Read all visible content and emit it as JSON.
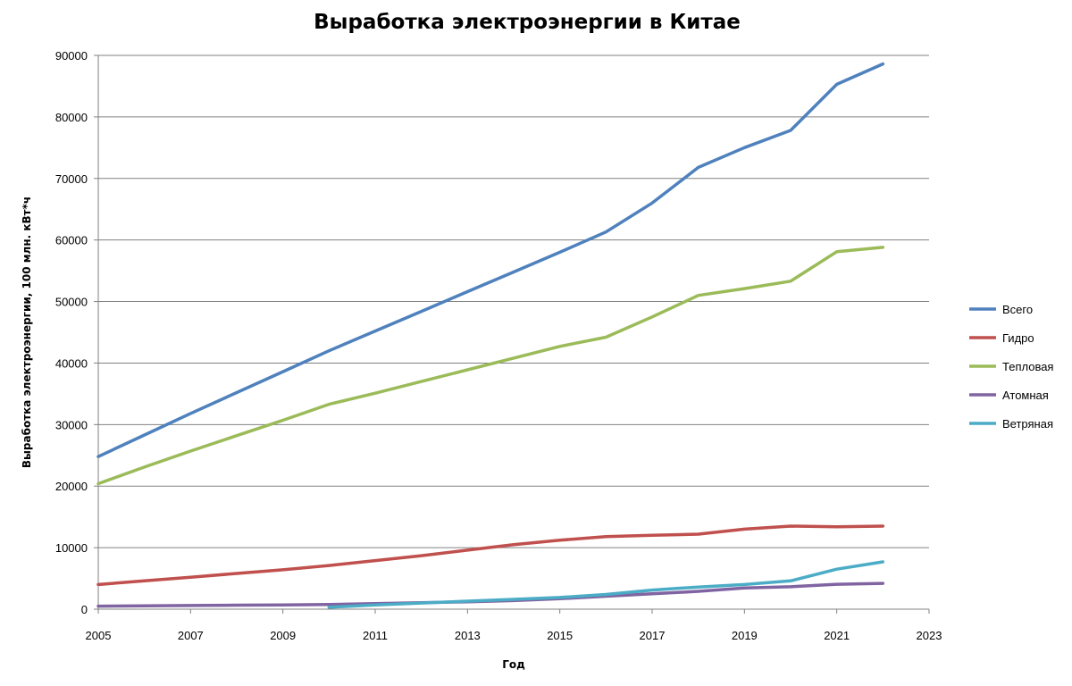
{
  "chart_data": {
    "type": "line",
    "title": "Выработка электроэнергии в Китае",
    "xlabel": "Год",
    "ylabel": "Выработка электроэнергии, 100 млн. кВт*ч",
    "xlim": [
      2005,
      2023
    ],
    "ylim": [
      0,
      90000
    ],
    "x_ticks": [
      "2005",
      "2007",
      "2009",
      "2011",
      "2013",
      "2015",
      "2017",
      "2019",
      "2021",
      "2023"
    ],
    "y_ticks": [
      "0",
      "10000",
      "20000",
      "30000",
      "40000",
      "50000",
      "60000",
      "70000",
      "80000",
      "90000"
    ],
    "grid": true,
    "legend_position": "right",
    "series": [
      {
        "name": "Всего",
        "color": "#4f81bd",
        "x": [
          2005,
          2006,
          2007,
          2008,
          2009,
          2010,
          2011,
          2012,
          2013,
          2014,
          2015,
          2016,
          2017,
          2018,
          2019,
          2020,
          2021,
          2022
        ],
        "values": [
          24800,
          28300,
          31800,
          35200,
          38600,
          42000,
          45200,
          48400,
          51600,
          54800,
          58000,
          61300,
          66000,
          71800,
          75000,
          77800,
          85300,
          88600
        ]
      },
      {
        "name": "Гидро",
        "color": "#c0504d",
        "x": [
          2005,
          2006,
          2007,
          2008,
          2009,
          2010,
          2011,
          2012,
          2013,
          2014,
          2015,
          2016,
          2017,
          2018,
          2019,
          2020,
          2021,
          2022
        ],
        "values": [
          4000,
          4600,
          5200,
          5800,
          6400,
          7100,
          7900,
          8700,
          9600,
          10500,
          11200,
          11800,
          12000,
          12200,
          13000,
          13500,
          13400,
          13500
        ]
      },
      {
        "name": "Тепловая",
        "color": "#9bbb59",
        "x": [
          2005,
          2006,
          2007,
          2008,
          2009,
          2010,
          2011,
          2012,
          2013,
          2014,
          2015,
          2016,
          2017,
          2018,
          2019,
          2020,
          2021,
          2022
        ],
        "values": [
          20400,
          23100,
          25700,
          28200,
          30700,
          33300,
          35100,
          37000,
          38900,
          40800,
          42700,
          44200,
          47500,
          51000,
          52100,
          53300,
          58100,
          58800
        ]
      },
      {
        "name": "Атомная",
        "color": "#8064a2",
        "x": [
          2005,
          2006,
          2007,
          2008,
          2009,
          2010,
          2011,
          2012,
          2013,
          2014,
          2015,
          2016,
          2017,
          2018,
          2019,
          2020,
          2021,
          2022
        ],
        "values": [
          500,
          550,
          600,
          650,
          700,
          750,
          900,
          1050,
          1200,
          1400,
          1700,
          2100,
          2500,
          2900,
          3450,
          3650,
          4050,
          4200
        ]
      },
      {
        "name": "Ветряная",
        "color": "#4bacc6",
        "x": [
          2010,
          2011,
          2012,
          2013,
          2014,
          2015,
          2016,
          2017,
          2018,
          2019,
          2020,
          2021,
          2022
        ],
        "values": [
          300,
          700,
          1000,
          1300,
          1600,
          1900,
          2400,
          3100,
          3600,
          4000,
          4600,
          6500,
          7700
        ]
      }
    ]
  }
}
